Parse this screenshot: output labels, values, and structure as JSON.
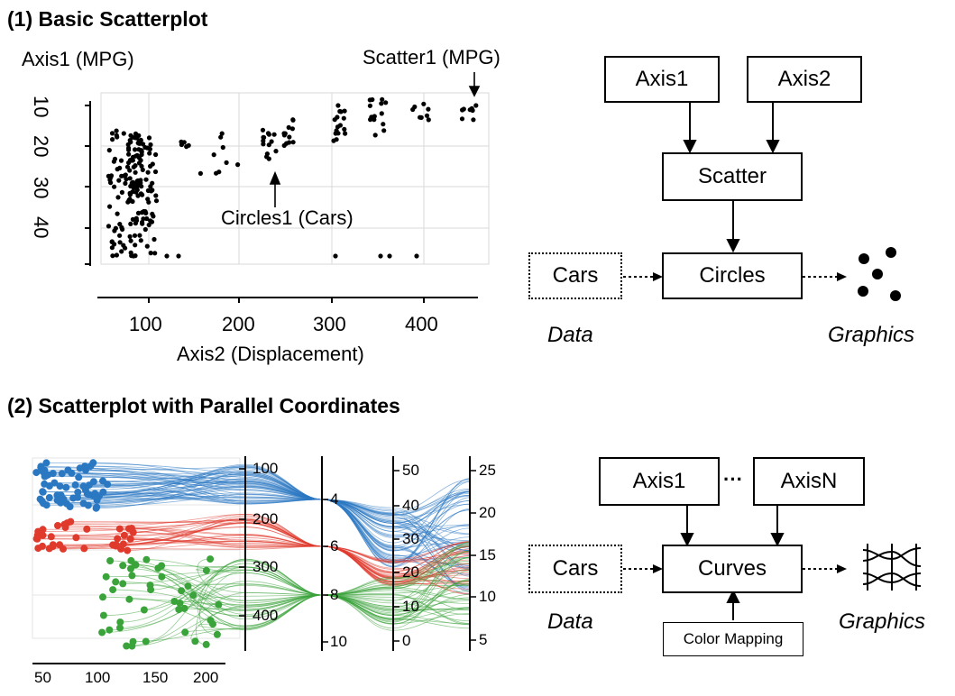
{
  "section1": {
    "title": "(1) Basic Scatterplot",
    "axis1_label": "Axis1 (MPG)",
    "scatter1_label": "Scatter1 (MPG)",
    "circles1_label": "Circles1 (Cars)",
    "axis2_label": "Axis2 (Displacement)",
    "y_ticks": [
      "10",
      "20",
      "30",
      "40"
    ],
    "x_ticks": [
      "100",
      "200",
      "300",
      "400"
    ]
  },
  "diagram1": {
    "axis1": "Axis1",
    "axis2": "Axis2",
    "scatter": "Scatter",
    "cars": "Cars",
    "circles": "Circles",
    "data": "Data",
    "graphics": "Graphics"
  },
  "section2": {
    "title": "(2) Scatterplot with Parallel Coordinates",
    "x_ticks": [
      "50",
      "100",
      "150",
      "200"
    ],
    "axis_disp_ticks": [
      "100",
      "200",
      "300",
      "400"
    ],
    "axis_cyl_ticks": [
      "4",
      "6",
      "8",
      "10"
    ],
    "axis_mpg_ticks": [
      "50",
      "40",
      "30",
      "20",
      "10",
      "0"
    ],
    "axis_acc_ticks": [
      "25",
      "20",
      "15",
      "10",
      "5"
    ]
  },
  "diagram2": {
    "axis1": "Axis1",
    "ellipsis": "···",
    "axisN": "AxisN",
    "cars": "Cars",
    "curves": "Curves",
    "data": "Data",
    "graphics": "Graphics",
    "color_mapping": "Color Mapping"
  },
  "colors": {
    "blue": "#2b78c2",
    "red": "#e03a2d",
    "green": "#3aa33a"
  }
}
